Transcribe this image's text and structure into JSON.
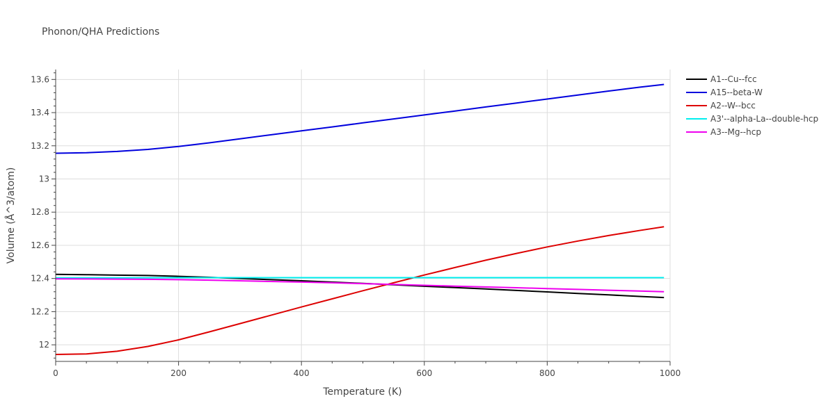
{
  "chart_data": {
    "type": "line",
    "title": "Phonon/QHA Predictions",
    "xlabel": "Temperature (K)",
    "ylabel": "Volume (Å^3/atom)",
    "xlim": [
      0,
      1000
    ],
    "ylim": [
      11.9,
      13.66
    ],
    "xticks": [
      0,
      200,
      400,
      600,
      800,
      1000
    ],
    "xtick_labels": [
      "0",
      "200",
      "400",
      "600",
      "800",
      "1000"
    ],
    "yticks": [
      12,
      12.2,
      12.4,
      12.6,
      12.8,
      13,
      13.2,
      13.4,
      13.6
    ],
    "ytick_labels": [
      "12",
      "12.2",
      "12.4",
      "12.6",
      "12.8",
      "13",
      "13.2",
      "13.4",
      "13.6"
    ],
    "grid": true,
    "legend_position": "top-right",
    "series": [
      {
        "name": "A1--Cu--fcc",
        "color": "#000000",
        "x": [
          0,
          50,
          100,
          150,
          200,
          250,
          300,
          350,
          400,
          450,
          500,
          550,
          600,
          650,
          700,
          750,
          800,
          850,
          900,
          950,
          990
        ],
        "y": [
          12.425,
          12.423,
          12.42,
          12.418,
          12.413,
          12.407,
          12.4,
          12.393,
          12.386,
          12.378,
          12.37,
          12.362,
          12.353,
          12.345,
          12.337,
          12.328,
          12.319,
          12.31,
          12.301,
          12.292,
          12.285
        ]
      },
      {
        "name": "A15--beta-W",
        "color": "#0000dd",
        "x": [
          0,
          50,
          100,
          150,
          200,
          250,
          300,
          350,
          400,
          450,
          500,
          550,
          600,
          650,
          700,
          750,
          800,
          850,
          900,
          950,
          990
        ],
        "y": [
          13.155,
          13.158,
          13.166,
          13.178,
          13.196,
          13.218,
          13.242,
          13.266,
          13.29,
          13.314,
          13.338,
          13.362,
          13.386,
          13.41,
          13.434,
          13.458,
          13.482,
          13.506,
          13.53,
          13.553,
          13.57
        ]
      },
      {
        "name": "A2--W--bcc",
        "color": "#dd0000",
        "x": [
          0,
          50,
          100,
          150,
          200,
          250,
          300,
          350,
          400,
          450,
          500,
          550,
          600,
          650,
          700,
          750,
          800,
          850,
          900,
          950,
          990
        ],
        "y": [
          11.942,
          11.945,
          11.961,
          11.99,
          12.03,
          12.078,
          12.128,
          12.178,
          12.228,
          12.277,
          12.326,
          12.374,
          12.421,
          12.466,
          12.51,
          12.551,
          12.59,
          12.626,
          12.659,
          12.689,
          12.712
        ]
      },
      {
        "name": "A3'--alpha-La--double-hcp",
        "color": "#00eeee",
        "x": [
          0,
          100,
          200,
          300,
          400,
          500,
          600,
          700,
          800,
          900,
          990
        ],
        "y": [
          12.404,
          12.404,
          12.405,
          12.405,
          12.405,
          12.405,
          12.405,
          12.405,
          12.405,
          12.405,
          12.405
        ]
      },
      {
        "name": "A3--Mg--hcp",
        "color": "#ee00ee",
        "x": [
          0,
          50,
          100,
          150,
          200,
          250,
          300,
          350,
          400,
          450,
          500,
          550,
          600,
          650,
          700,
          750,
          800,
          850,
          900,
          950,
          990
        ],
        "y": [
          12.398,
          12.397,
          12.396,
          12.395,
          12.393,
          12.39,
          12.386,
          12.382,
          12.378,
          12.374,
          12.369,
          12.364,
          12.359,
          12.354,
          12.349,
          12.344,
          12.339,
          12.334,
          12.329,
          12.324,
          12.32
        ]
      }
    ]
  }
}
